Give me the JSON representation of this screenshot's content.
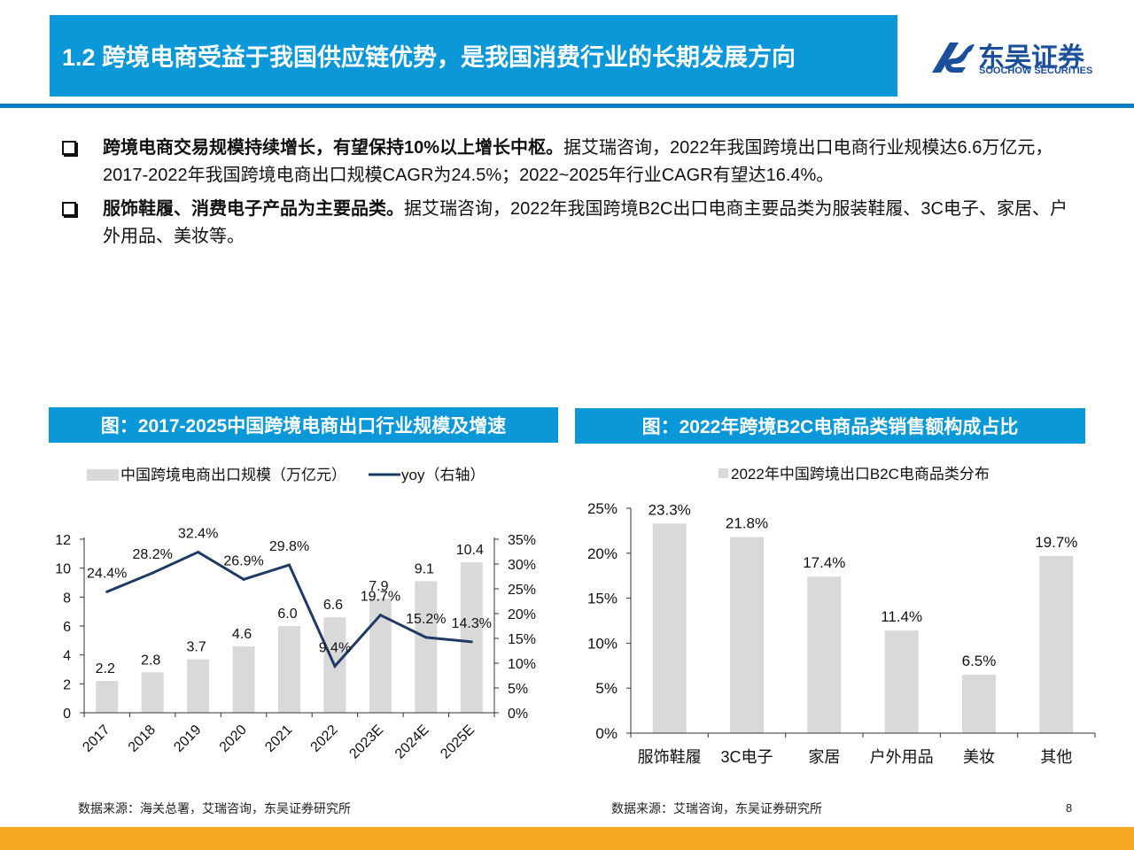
{
  "header": {
    "title": "1.2 跨境电商受益于我国供应链优势，是我国消费行业的长期发展方向",
    "logo_cn": "东吴证券",
    "logo_en": "SOOCHOW SECURITIES"
  },
  "bullets": [
    {
      "bold": "跨境电商交易规模持续增长，有望保持10%以上增长中枢。",
      "text": "据艾瑞咨询，2022年我国跨境出口电商行业规模达6.6万亿元，2017-2022年我国跨境电商出口规模CAGR为24.5%；2022~2025年行业CAGR有望达16.4%。"
    },
    {
      "bold": "服饰鞋履、消费电子产品为主要品类。",
      "text": "据艾瑞咨询，2022年我国跨境B2C出口电商主要品类为服装鞋履、3C电子、家居、户外用品、美妆等。"
    }
  ],
  "left_panel": {
    "heading": "图：2017-2025中国跨境电商出口行业规模及增速",
    "source": "数据来源：海关总署，艾瑞咨询，东吴证券研究所"
  },
  "right_panel": {
    "heading": "图：2022年跨境B2C电商品类销售额构成占比",
    "source": "数据来源：艾瑞咨询，东吴证券研究所"
  },
  "page_number": "8",
  "chart_data": [
    {
      "type": "bar",
      "categories": [
        "2017",
        "2018",
        "2019",
        "2020",
        "2021",
        "2022",
        "2023E",
        "2024E",
        "2025E"
      ],
      "series": [
        {
          "name": "中国跨境电商出口规模（万亿元）",
          "type": "bar",
          "axis": "left",
          "values": [
            2.2,
            2.8,
            3.7,
            4.6,
            6.0,
            6.6,
            7.9,
            9.1,
            10.4
          ],
          "labels": [
            "2.2",
            "2.8",
            "3.7",
            "4.6",
            "6.0",
            "6.6",
            "7.9",
            "9.1",
            "10.4"
          ]
        },
        {
          "name": "yoy（右轴）",
          "type": "line",
          "axis": "right",
          "values": [
            24.4,
            28.2,
            32.4,
            26.9,
            29.8,
            9.4,
            19.7,
            15.2,
            14.3
          ],
          "labels": [
            "24.4%",
            "28.2%",
            "32.4%",
            "26.9%",
            "29.8%",
            "9.4%",
            "19.7%",
            "15.2%",
            "14.3%"
          ]
        }
      ],
      "y_left": {
        "lim": [
          0,
          12
        ],
        "ticks": [
          "0",
          "2",
          "4",
          "6",
          "8",
          "10",
          "12"
        ]
      },
      "y_right": {
        "lim": [
          0,
          35
        ],
        "ticks": [
          "0%",
          "5%",
          "10%",
          "15%",
          "20%",
          "25%",
          "30%",
          "35%"
        ]
      },
      "legend_position": "top",
      "grid": false,
      "colors": {
        "bar": "#d9d9d9",
        "line": "#1f3b63"
      }
    },
    {
      "type": "bar",
      "categories": [
        "服饰鞋履",
        "3C电子",
        "家居",
        "户外用品",
        "美妆",
        "其他"
      ],
      "series": [
        {
          "name": "2022年中国跨境出口B2C电商品类分布",
          "values": [
            23.3,
            21.8,
            17.4,
            11.4,
            6.5,
            19.7
          ],
          "labels": [
            "23.3%",
            "21.8%",
            "17.4%",
            "11.4%",
            "6.5%",
            "19.7%"
          ]
        }
      ],
      "y": {
        "lim": [
          0,
          25
        ],
        "ticks": [
          "0%",
          "5%",
          "10%",
          "15%",
          "20%",
          "25%"
        ]
      },
      "legend_position": "top",
      "grid": false,
      "colors": {
        "bar": "#d9d9d9"
      }
    }
  ]
}
